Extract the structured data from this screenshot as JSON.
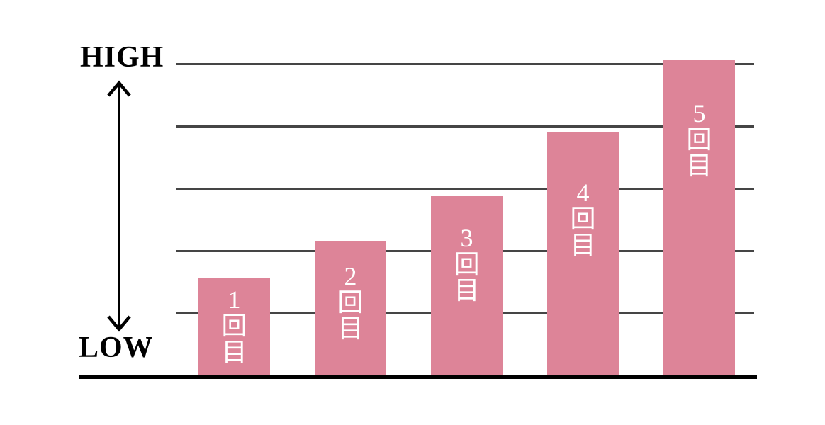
{
  "chart_data": {
    "type": "bar",
    "title": "",
    "categories": [
      "1回目",
      "2回目",
      "3回目",
      "4回目",
      "5回目"
    ],
    "values": [
      0.316,
      0.434,
      0.576,
      0.779,
      1.011
    ],
    "value_scale_note": "values normalized so 1.0 = HIGH gridline level; no numeric axis shown",
    "ylim": [
      0,
      1.05
    ],
    "y_axis": {
      "high_label": "HIGH",
      "low_label": "LOW"
    },
    "xlabel": "",
    "ylabel": "",
    "gridline_count": 5,
    "grid": "horizontal",
    "legend": "none",
    "colors": {
      "bar": "#dd8498",
      "bar_label_text": "#ffffff",
      "gridline": "#454545",
      "axis_line": "#000000",
      "axis_text": "#000000",
      "background": "#ffffff"
    }
  }
}
